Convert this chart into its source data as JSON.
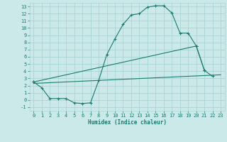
{
  "xlabel": "Humidex (Indice chaleur)",
  "background_color": "#cce9ea",
  "grid_color": "#aad4d6",
  "line_color": "#1a7a6e",
  "xlim": [
    -0.5,
    23.5
  ],
  "ylim": [
    -1.5,
    13.5
  ],
  "yticks": [
    -1,
    0,
    1,
    2,
    3,
    4,
    5,
    6,
    7,
    8,
    9,
    10,
    11,
    12,
    13
  ],
  "xticks": [
    0,
    1,
    2,
    3,
    4,
    5,
    6,
    7,
    8,
    9,
    10,
    11,
    12,
    13,
    14,
    15,
    16,
    17,
    18,
    19,
    20,
    21,
    22,
    23
  ],
  "line1_x": [
    0,
    1,
    2,
    3,
    4,
    5,
    6,
    7,
    8,
    9,
    10,
    11,
    12,
    13,
    14,
    15,
    16,
    17,
    18,
    19,
    20,
    21,
    22
  ],
  "line1_y": [
    2.5,
    1.7,
    0.2,
    0.2,
    0.2,
    -0.4,
    -0.5,
    -0.4,
    2.7,
    6.3,
    8.5,
    10.5,
    11.8,
    12.0,
    12.9,
    13.1,
    13.1,
    12.1,
    9.3,
    9.3,
    7.5,
    4.1,
    3.3
  ],
  "line2_x": [
    0,
    20,
    21
  ],
  "line2_y": [
    2.5,
    7.5,
    4.1
  ],
  "line3_x": [
    0,
    23
  ],
  "line3_y": [
    2.3,
    3.5
  ],
  "xlabel_fontsize": 5.5,
  "tick_fontsize": 5.0
}
